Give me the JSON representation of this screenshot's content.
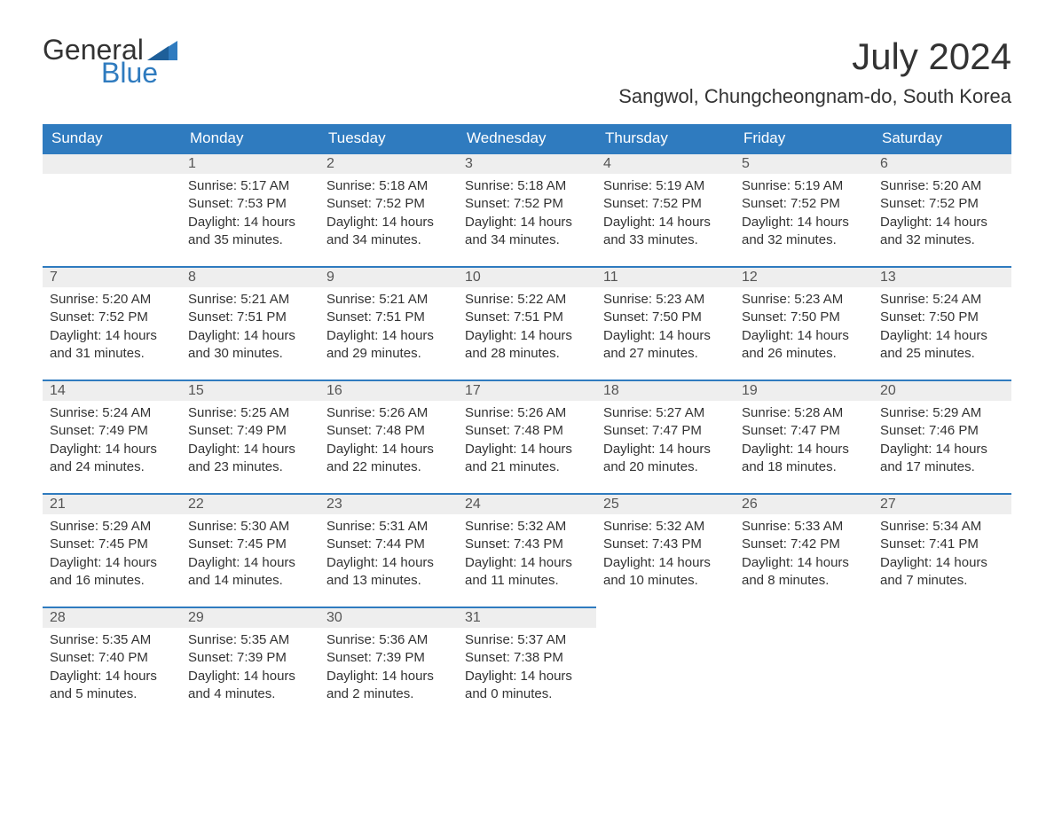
{
  "brand": {
    "word1": "General",
    "word2": "Blue",
    "accent_color": "#2f7bbf"
  },
  "title": "July 2024",
  "location": "Sangwol, Chungcheongnam-do, South Korea",
  "columns": [
    "Sunday",
    "Monday",
    "Tuesday",
    "Wednesday",
    "Thursday",
    "Friday",
    "Saturday"
  ],
  "colors": {
    "header_bg": "#2f7bbf",
    "header_text": "#ffffff",
    "daynum_bg": "#eeeeee",
    "row_border": "#2f7bbf",
    "body_text": "#333333"
  },
  "weeks": [
    [
      null,
      {
        "n": "1",
        "sunrise": "Sunrise: 5:17 AM",
        "sunset": "Sunset: 7:53 PM",
        "daylight": "Daylight: 14 hours and 35 minutes."
      },
      {
        "n": "2",
        "sunrise": "Sunrise: 5:18 AM",
        "sunset": "Sunset: 7:52 PM",
        "daylight": "Daylight: 14 hours and 34 minutes."
      },
      {
        "n": "3",
        "sunrise": "Sunrise: 5:18 AM",
        "sunset": "Sunset: 7:52 PM",
        "daylight": "Daylight: 14 hours and 34 minutes."
      },
      {
        "n": "4",
        "sunrise": "Sunrise: 5:19 AM",
        "sunset": "Sunset: 7:52 PM",
        "daylight": "Daylight: 14 hours and 33 minutes."
      },
      {
        "n": "5",
        "sunrise": "Sunrise: 5:19 AM",
        "sunset": "Sunset: 7:52 PM",
        "daylight": "Daylight: 14 hours and 32 minutes."
      },
      {
        "n": "6",
        "sunrise": "Sunrise: 5:20 AM",
        "sunset": "Sunset: 7:52 PM",
        "daylight": "Daylight: 14 hours and 32 minutes."
      }
    ],
    [
      {
        "n": "7",
        "sunrise": "Sunrise: 5:20 AM",
        "sunset": "Sunset: 7:52 PM",
        "daylight": "Daylight: 14 hours and 31 minutes."
      },
      {
        "n": "8",
        "sunrise": "Sunrise: 5:21 AM",
        "sunset": "Sunset: 7:51 PM",
        "daylight": "Daylight: 14 hours and 30 minutes."
      },
      {
        "n": "9",
        "sunrise": "Sunrise: 5:21 AM",
        "sunset": "Sunset: 7:51 PM",
        "daylight": "Daylight: 14 hours and 29 minutes."
      },
      {
        "n": "10",
        "sunrise": "Sunrise: 5:22 AM",
        "sunset": "Sunset: 7:51 PM",
        "daylight": "Daylight: 14 hours and 28 minutes."
      },
      {
        "n": "11",
        "sunrise": "Sunrise: 5:23 AM",
        "sunset": "Sunset: 7:50 PM",
        "daylight": "Daylight: 14 hours and 27 minutes."
      },
      {
        "n": "12",
        "sunrise": "Sunrise: 5:23 AM",
        "sunset": "Sunset: 7:50 PM",
        "daylight": "Daylight: 14 hours and 26 minutes."
      },
      {
        "n": "13",
        "sunrise": "Sunrise: 5:24 AM",
        "sunset": "Sunset: 7:50 PM",
        "daylight": "Daylight: 14 hours and 25 minutes."
      }
    ],
    [
      {
        "n": "14",
        "sunrise": "Sunrise: 5:24 AM",
        "sunset": "Sunset: 7:49 PM",
        "daylight": "Daylight: 14 hours and 24 minutes."
      },
      {
        "n": "15",
        "sunrise": "Sunrise: 5:25 AM",
        "sunset": "Sunset: 7:49 PM",
        "daylight": "Daylight: 14 hours and 23 minutes."
      },
      {
        "n": "16",
        "sunrise": "Sunrise: 5:26 AM",
        "sunset": "Sunset: 7:48 PM",
        "daylight": "Daylight: 14 hours and 22 minutes."
      },
      {
        "n": "17",
        "sunrise": "Sunrise: 5:26 AM",
        "sunset": "Sunset: 7:48 PM",
        "daylight": "Daylight: 14 hours and 21 minutes."
      },
      {
        "n": "18",
        "sunrise": "Sunrise: 5:27 AM",
        "sunset": "Sunset: 7:47 PM",
        "daylight": "Daylight: 14 hours and 20 minutes."
      },
      {
        "n": "19",
        "sunrise": "Sunrise: 5:28 AM",
        "sunset": "Sunset: 7:47 PM",
        "daylight": "Daylight: 14 hours and 18 minutes."
      },
      {
        "n": "20",
        "sunrise": "Sunrise: 5:29 AM",
        "sunset": "Sunset: 7:46 PM",
        "daylight": "Daylight: 14 hours and 17 minutes."
      }
    ],
    [
      {
        "n": "21",
        "sunrise": "Sunrise: 5:29 AM",
        "sunset": "Sunset: 7:45 PM",
        "daylight": "Daylight: 14 hours and 16 minutes."
      },
      {
        "n": "22",
        "sunrise": "Sunrise: 5:30 AM",
        "sunset": "Sunset: 7:45 PM",
        "daylight": "Daylight: 14 hours and 14 minutes."
      },
      {
        "n": "23",
        "sunrise": "Sunrise: 5:31 AM",
        "sunset": "Sunset: 7:44 PM",
        "daylight": "Daylight: 14 hours and 13 minutes."
      },
      {
        "n": "24",
        "sunrise": "Sunrise: 5:32 AM",
        "sunset": "Sunset: 7:43 PM",
        "daylight": "Daylight: 14 hours and 11 minutes."
      },
      {
        "n": "25",
        "sunrise": "Sunrise: 5:32 AM",
        "sunset": "Sunset: 7:43 PM",
        "daylight": "Daylight: 14 hours and 10 minutes."
      },
      {
        "n": "26",
        "sunrise": "Sunrise: 5:33 AM",
        "sunset": "Sunset: 7:42 PM",
        "daylight": "Daylight: 14 hours and 8 minutes."
      },
      {
        "n": "27",
        "sunrise": "Sunrise: 5:34 AM",
        "sunset": "Sunset: 7:41 PM",
        "daylight": "Daylight: 14 hours and 7 minutes."
      }
    ],
    [
      {
        "n": "28",
        "sunrise": "Sunrise: 5:35 AM",
        "sunset": "Sunset: 7:40 PM",
        "daylight": "Daylight: 14 hours and 5 minutes."
      },
      {
        "n": "29",
        "sunrise": "Sunrise: 5:35 AM",
        "sunset": "Sunset: 7:39 PM",
        "daylight": "Daylight: 14 hours and 4 minutes."
      },
      {
        "n": "30",
        "sunrise": "Sunrise: 5:36 AM",
        "sunset": "Sunset: 7:39 PM",
        "daylight": "Daylight: 14 hours and 2 minutes."
      },
      {
        "n": "31",
        "sunrise": "Sunrise: 5:37 AM",
        "sunset": "Sunset: 7:38 PM",
        "daylight": "Daylight: 14 hours and 0 minutes."
      },
      null,
      null,
      null
    ]
  ]
}
